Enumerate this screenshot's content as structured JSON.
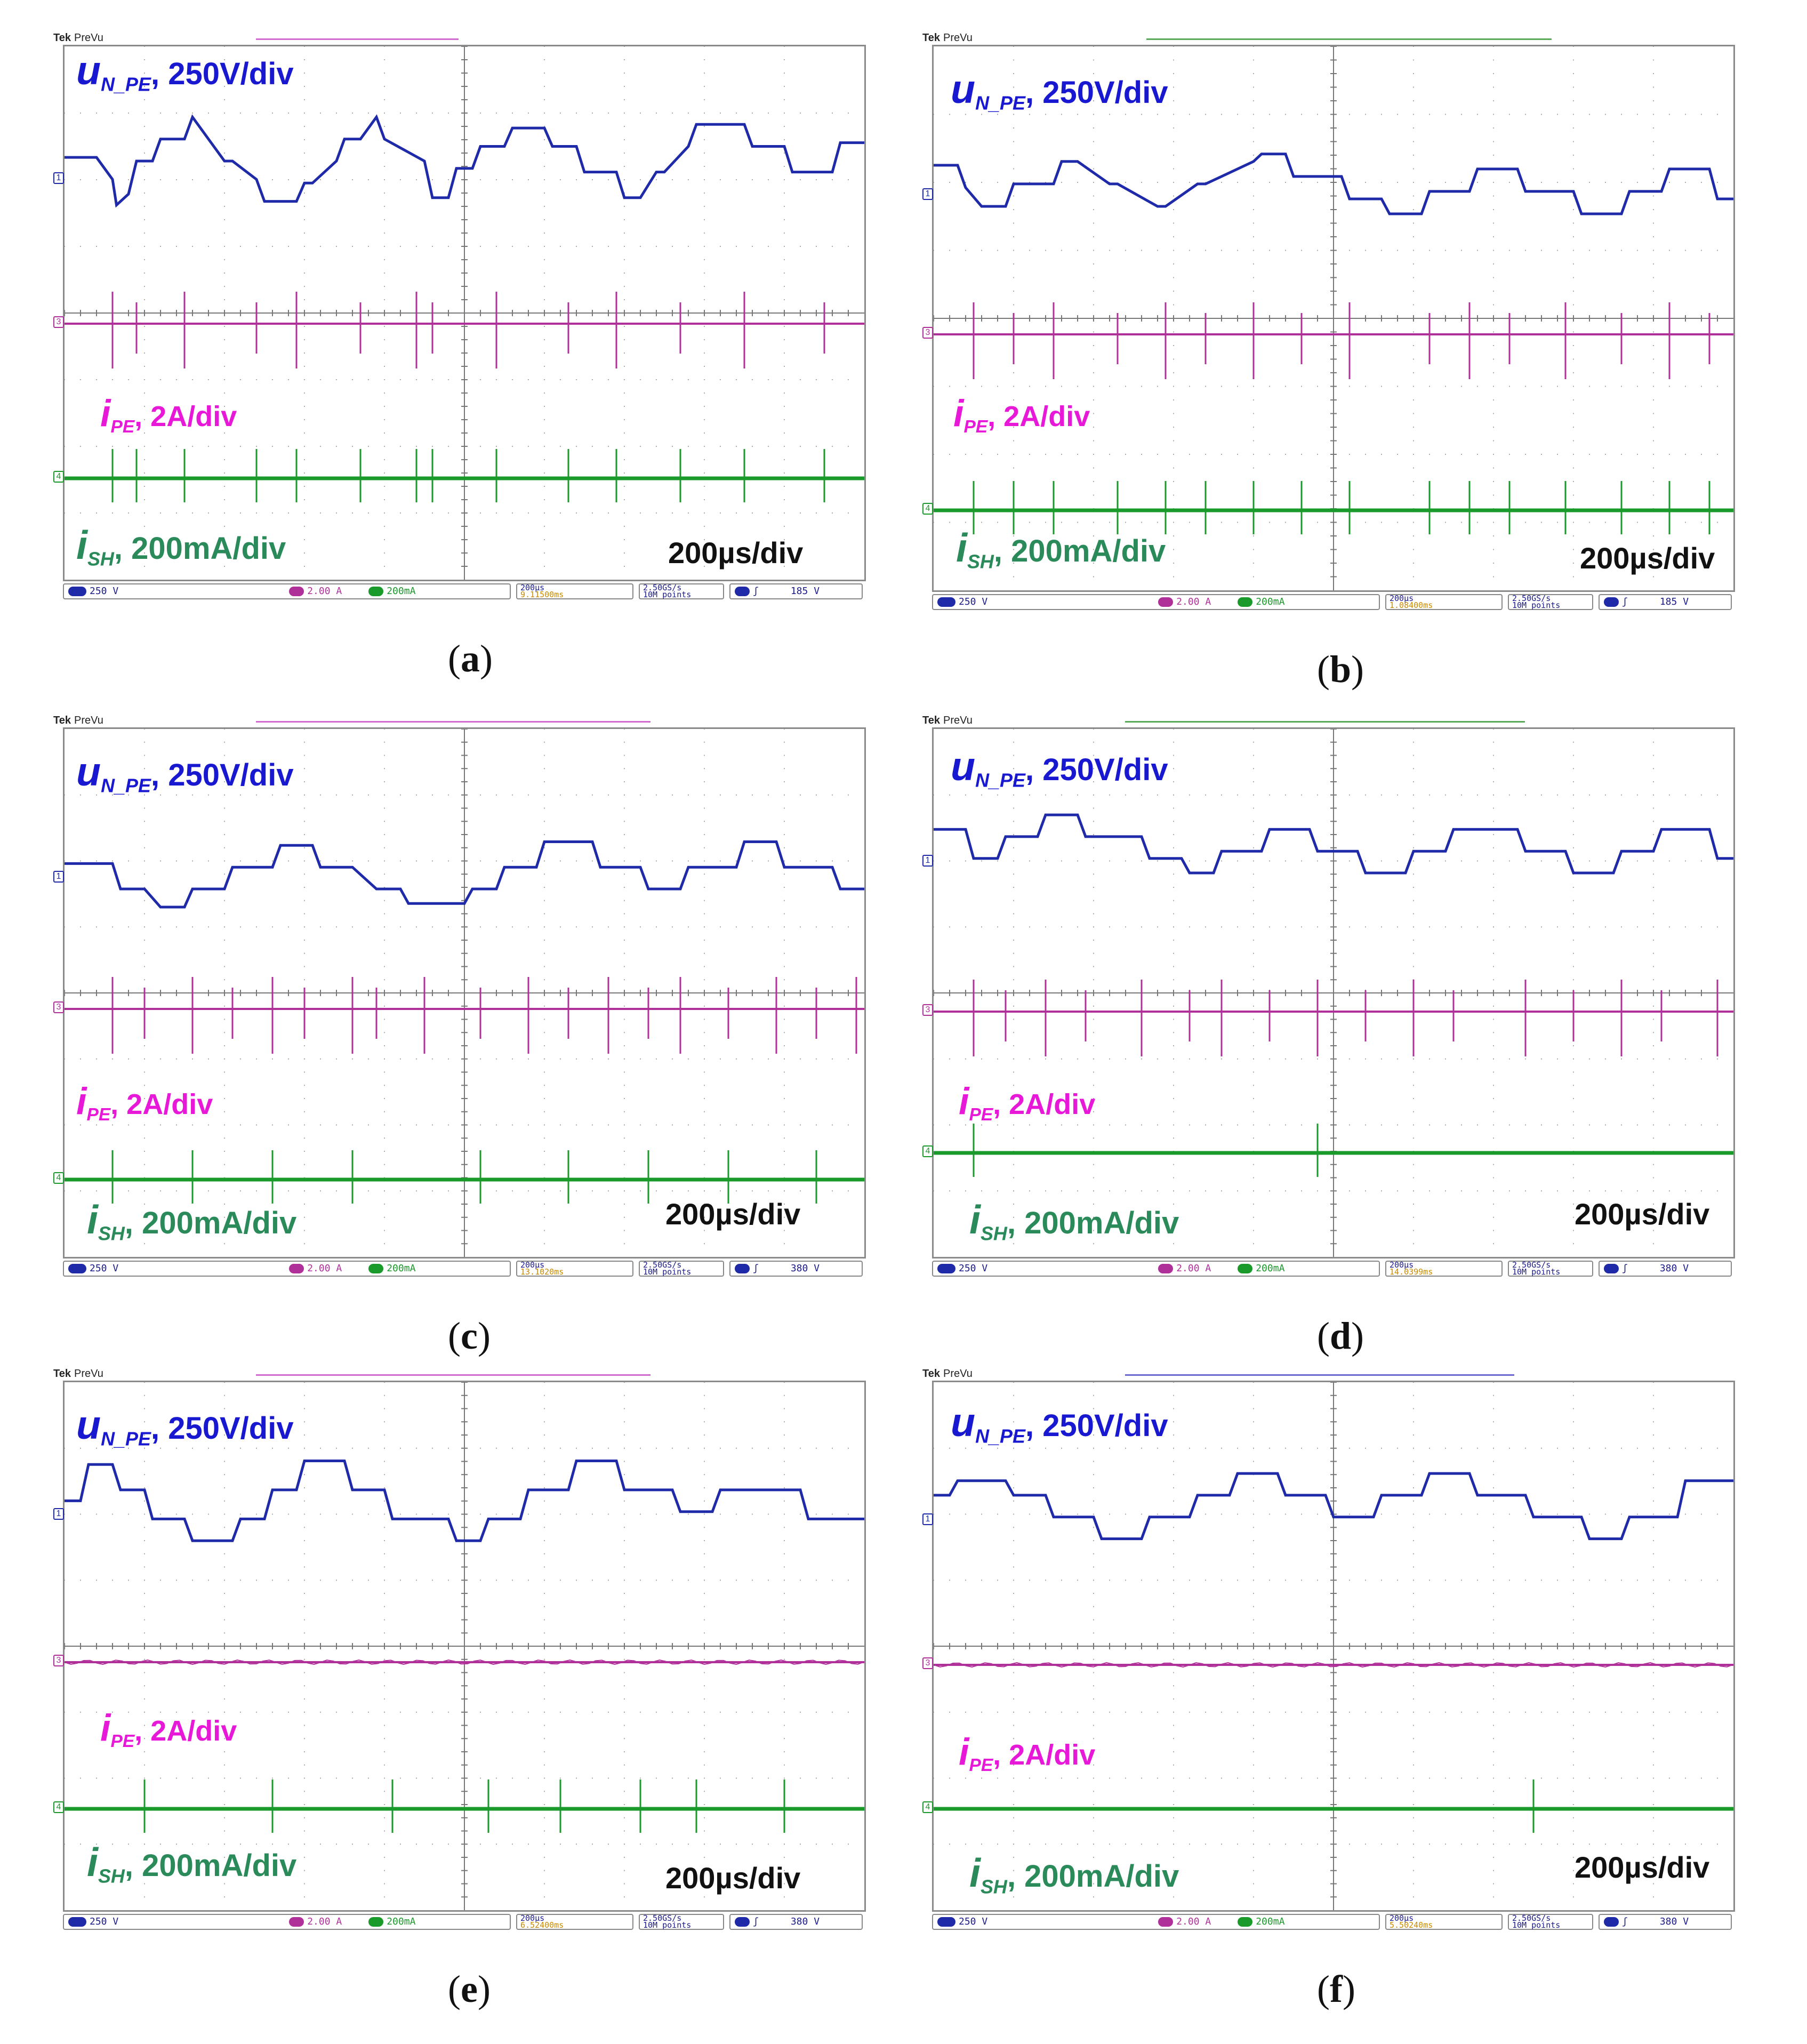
{
  "scope_header": {
    "brand": "Tek",
    "mode": "PreVu"
  },
  "labels": {
    "u": {
      "main": "u",
      "sub": "N_PE",
      "scale": ", 250V/div"
    },
    "ipe": {
      "main": "i",
      "sub": "PE",
      "scale": ", 2A/div"
    },
    "ish": {
      "main": "i",
      "sub": "SH",
      "scale": ", 200mA/div"
    },
    "timebase": "200µs/div"
  },
  "colors": {
    "u": "#1f2aa8",
    "ipe": "#b0309a",
    "ish": "#1a9a2a",
    "ipe_label": "#e818d8",
    "ish_label": "#2a8a5a",
    "u_label": "#1818d0"
  },
  "status_common": {
    "ch1": "250 V",
    "ch3": "2.00 A",
    "ch4": "200mA",
    "tb": "200µs",
    "rate": "2.50GS/s",
    "points": "10M points"
  },
  "panels": [
    {
      "caption": "a",
      "delay": "9.11500ms",
      "trig": "185 V"
    },
    {
      "caption": "b",
      "delay": "1.08400ms",
      "trig": "185 V"
    },
    {
      "caption": "c",
      "delay": "13.1020ms",
      "trig": "380 V"
    },
    {
      "caption": "d",
      "delay": "14.0399ms",
      "trig": "380 V"
    },
    {
      "caption": "e",
      "delay": "6.52400ms",
      "trig": "380 V"
    },
    {
      "caption": "f",
      "delay": "5.50240ms",
      "trig": "380 V"
    }
  ],
  "chart_data": [
    {
      "panel": "a",
      "type": "line",
      "x_unit": "div",
      "y_unit": "div",
      "series": [
        {
          "name": "uN_PE",
          "x": [
            0,
            0.4,
            0.6,
            0.65,
            0.8,
            0.9,
            1.1,
            1.2,
            1.5,
            1.6,
            1.8,
            2.0,
            2.1,
            2.4,
            2.5,
            2.9,
            3.0,
            3.1,
            3.4,
            3.5,
            3.7,
            3.9,
            4.0,
            4.5,
            4.6,
            4.8,
            4.9,
            5.1,
            5.2,
            5.5,
            5.6,
            6.0,
            6.1,
            6.4,
            6.5,
            6.9,
            7.0,
            7.2,
            7.4,
            7.5,
            7.8,
            7.9,
            8.5,
            8.6,
            9.0,
            9.1,
            9.6,
            9.7,
            10.0
          ],
          "y": [
            0.9,
            0.9,
            0.3,
            -0.4,
            -0.1,
            0.8,
            0.8,
            1.4,
            1.4,
            2.0,
            1.4,
            0.8,
            0.8,
            0.3,
            -0.3,
            -0.3,
            0.2,
            0.2,
            0.8,
            1.4,
            1.4,
            2.0,
            1.4,
            0.8,
            -0.2,
            -0.2,
            0.6,
            0.6,
            1.2,
            1.2,
            1.7,
            1.7,
            1.2,
            1.2,
            0.5,
            0.5,
            -0.2,
            -0.2,
            0.5,
            0.5,
            1.2,
            1.8,
            1.8,
            1.2,
            1.2,
            0.5,
            0.5,
            1.3,
            1.3
          ]
        },
        {
          "name": "iPE",
          "offset": -1.0,
          "spikes": [
            0.6,
            0.9,
            1.5,
            2.4,
            2.9,
            3.7,
            4.4,
            4.6,
            5.4,
            6.3,
            6.9,
            7.7,
            8.5,
            9.5
          ]
        },
        {
          "name": "iSH",
          "offset": -3.0,
          "spikes": [
            0.6,
            0.9,
            1.5,
            2.4,
            2.9,
            3.7,
            4.4,
            4.6,
            5.4,
            6.3,
            6.9,
            7.7,
            8.5,
            9.5
          ]
        }
      ]
    },
    {
      "panel": "b",
      "type": "line",
      "x_unit": "div",
      "y_unit": "div",
      "series": [
        {
          "name": "uN_PE",
          "x": [
            0,
            0.3,
            0.4,
            0.6,
            0.9,
            1.0,
            1.5,
            1.6,
            1.8,
            2.2,
            2.3,
            2.8,
            2.9,
            3.3,
            3.4,
            4.0,
            4.1,
            4.4,
            4.5,
            5.1,
            5.2,
            5.6,
            5.7,
            6.1,
            6.2,
            6.7,
            6.8,
            7.3,
            7.4,
            8.0,
            8.1,
            8.6,
            8.7,
            9.1,
            9.2,
            9.7,
            9.8,
            10.0
          ],
          "y": [
            1.1,
            1.1,
            0.5,
            0.0,
            0.0,
            0.6,
            0.6,
            1.2,
            1.2,
            0.6,
            0.6,
            0.0,
            0.0,
            0.6,
            0.6,
            1.2,
            1.4,
            1.4,
            0.8,
            0.8,
            0.2,
            0.2,
            -0.2,
            -0.2,
            0.4,
            0.4,
            1.0,
            1.0,
            0.4,
            0.4,
            -0.2,
            -0.2,
            0.4,
            0.4,
            1.0,
            1.0,
            0.2,
            0.2
          ]
        },
        {
          "name": "iPE",
          "offset": -1.0,
          "spikes": [
            0.5,
            1.0,
            1.5,
            2.3,
            2.9,
            3.4,
            4.0,
            4.6,
            5.2,
            6.2,
            6.7,
            7.2,
            7.9,
            8.6,
            9.2,
            9.7
          ]
        },
        {
          "name": "iSH",
          "offset": -3.0,
          "spikes": [
            0.5,
            1.0,
            1.5,
            2.3,
            2.9,
            3.4,
            4.0,
            4.6,
            5.2,
            6.2,
            6.7,
            7.2,
            7.9,
            8.6,
            9.2,
            9.7
          ]
        }
      ]
    },
    {
      "panel": "c",
      "type": "line",
      "x_unit": "div",
      "y_unit": "div",
      "series": [
        {
          "name": "uN_PE",
          "x": [
            0,
            0.6,
            0.7,
            1.0,
            1.2,
            1.5,
            1.6,
            2.0,
            2.1,
            2.6,
            2.7,
            3.1,
            3.2,
            3.6,
            3.9,
            4.2,
            4.3,
            5.0,
            5.1,
            5.4,
            5.5,
            5.9,
            6.0,
            6.6,
            6.7,
            7.2,
            7.3,
            7.7,
            7.8,
            8.4,
            8.5,
            8.9,
            9.0,
            9.6,
            9.7,
            10.0
          ],
          "y": [
            0.7,
            0.7,
            0.0,
            0.0,
            -0.5,
            -0.5,
            0.0,
            0.0,
            0.6,
            0.6,
            1.2,
            1.2,
            0.6,
            0.6,
            0.0,
            0.0,
            -0.4,
            -0.4,
            0.0,
            0.0,
            0.6,
            0.6,
            1.3,
            1.3,
            0.6,
            0.6,
            0.0,
            0.0,
            0.6,
            0.6,
            1.3,
            1.3,
            0.6,
            0.6,
            0.0,
            0.0
          ]
        },
        {
          "name": "iPE",
          "offset": -1.0,
          "spikes": [
            0.6,
            1.0,
            1.6,
            2.1,
            2.6,
            3.0,
            3.6,
            3.9,
            4.5,
            5.2,
            5.8,
            6.3,
            6.8,
            7.3,
            7.7,
            8.3,
            8.9,
            9.4,
            9.9
          ]
        },
        {
          "name": "iSH",
          "offset": -3.0,
          "spikes": [
            0.6,
            1.6,
            2.6,
            3.6,
            5.2,
            6.3,
            7.3,
            8.3,
            9.4
          ]
        }
      ]
    },
    {
      "panel": "d",
      "type": "line",
      "x_unit": "div",
      "y_unit": "div",
      "series": [
        {
          "name": "uN_PE",
          "x": [
            0,
            0.4,
            0.5,
            0.8,
            0.9,
            1.3,
            1.4,
            1.8,
            1.9,
            2.6,
            2.7,
            3.1,
            3.2,
            3.5,
            3.6,
            4.1,
            4.2,
            4.7,
            4.8,
            5.3,
            5.4,
            5.9,
            6.0,
            6.4,
            6.5,
            7.3,
            7.4,
            7.9,
            8.0,
            8.5,
            8.6,
            9.0,
            9.1,
            9.7,
            9.8,
            10.0
          ],
          "y": [
            1.2,
            1.2,
            0.4,
            0.4,
            1.0,
            1.0,
            1.6,
            1.6,
            1.0,
            1.0,
            0.4,
            0.4,
            0.0,
            0.0,
            0.6,
            0.6,
            1.2,
            1.2,
            0.6,
            0.6,
            0.0,
            0.0,
            0.6,
            0.6,
            1.2,
            1.2,
            0.6,
            0.6,
            0.0,
            0.0,
            0.6,
            0.6,
            1.2,
            1.2,
            0.4,
            0.4
          ]
        },
        {
          "name": "iPE",
          "offset": -1.0,
          "spikes": [
            0.5,
            0.9,
            1.4,
            1.9,
            2.6,
            3.2,
            3.6,
            4.2,
            4.8,
            5.4,
            6.0,
            6.5,
            7.4,
            8.0,
            8.6,
            9.1,
            9.8
          ]
        },
        {
          "name": "iSH",
          "offset": -3.0,
          "spikes": [
            0.5,
            4.8
          ]
        }
      ]
    },
    {
      "panel": "e",
      "type": "line",
      "x_unit": "div",
      "y_unit": "div",
      "series": [
        {
          "name": "uN_PE",
          "x": [
            0,
            0.2,
            0.3,
            0.6,
            0.7,
            1.0,
            1.1,
            1.5,
            1.6,
            2.1,
            2.2,
            2.5,
            2.6,
            2.9,
            3.0,
            3.5,
            3.6,
            4.0,
            4.1,
            4.8,
            4.9,
            5.2,
            5.3,
            5.7,
            5.8,
            6.3,
            6.4,
            6.9,
            7.0,
            7.6,
            7.7,
            8.1,
            8.2,
            9.2,
            9.3,
            10.0
          ],
          "y": [
            0.7,
            0.7,
            1.7,
            1.7,
            1.0,
            1.0,
            0.2,
            0.2,
            -0.4,
            -0.4,
            0.2,
            0.2,
            1.0,
            1.0,
            1.8,
            1.8,
            1.0,
            1.0,
            0.2,
            0.2,
            -0.4,
            -0.4,
            0.2,
            0.2,
            1.0,
            1.0,
            1.8,
            1.8,
            1.0,
            1.0,
            0.4,
            0.4,
            1.0,
            1.0,
            0.2,
            0.2
          ]
        },
        {
          "name": "iPE",
          "offset": -1.0,
          "spikes": []
        },
        {
          "name": "iSH",
          "offset": -3.0,
          "spikes": [
            1.0,
            2.6,
            4.1,
            5.3,
            6.2,
            7.2,
            7.9,
            9.0
          ]
        }
      ]
    },
    {
      "panel": "f",
      "type": "line",
      "x_unit": "div",
      "y_unit": "div",
      "series": [
        {
          "name": "uN_PE",
          "x": [
            0,
            0.2,
            0.3,
            0.9,
            1.0,
            1.4,
            1.5,
            2.0,
            2.1,
            2.6,
            2.7,
            3.2,
            3.3,
            3.7,
            3.8,
            4.3,
            4.4,
            4.9,
            5.0,
            5.5,
            5.6,
            6.1,
            6.2,
            6.7,
            6.8,
            7.4,
            7.5,
            8.1,
            8.2,
            8.6,
            8.7,
            9.3,
            9.4,
            10.0
          ],
          "y": [
            1.0,
            1.0,
            1.4,
            1.4,
            1.0,
            1.0,
            0.4,
            0.4,
            -0.2,
            -0.2,
            0.4,
            0.4,
            1.0,
            1.0,
            1.6,
            1.6,
            1.0,
            1.0,
            0.4,
            0.4,
            1.0,
            1.0,
            1.6,
            1.6,
            1.0,
            1.0,
            0.4,
            0.4,
            -0.2,
            -0.2,
            0.4,
            0.4,
            1.4,
            1.4
          ]
        },
        {
          "name": "iPE",
          "offset": -1.0,
          "spikes": []
        },
        {
          "name": "iSH",
          "offset": -3.0,
          "spikes": [
            7.5
          ]
        }
      ]
    }
  ]
}
